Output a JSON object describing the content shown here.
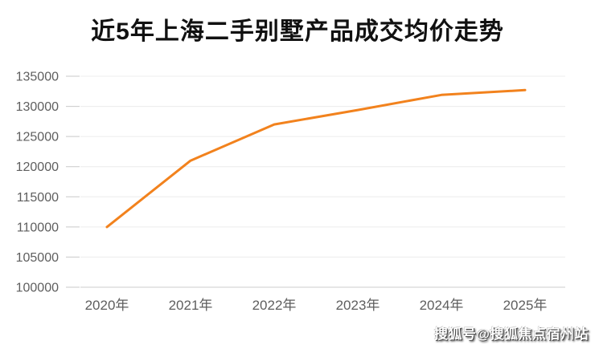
{
  "title": "近5年上海二手别墅产品成交均价走势",
  "watermark": "搜狐号@搜狐焦点宿州站",
  "chart_data": {
    "type": "line",
    "title": "近5年上海二手别墅产品成交均价走势",
    "categories": [
      "2020年",
      "2021年",
      "2022年",
      "2023年",
      "2024年",
      "2025年"
    ],
    "series": [
      {
        "name": "成交均价",
        "values": [
          110000,
          121000,
          127000,
          129400,
          131900,
          132700
        ]
      }
    ],
    "ylim": [
      100000,
      135000
    ],
    "yticks": [
      100000,
      105000,
      110000,
      115000,
      120000,
      125000,
      130000,
      135000
    ],
    "xlabel": "",
    "ylabel": "",
    "grid": true,
    "legend_position": "none",
    "colors": {
      "line": "#f2821d",
      "axis_label": "#5e5e5e",
      "gridline": "#ececec",
      "tick": "#c9c9c9",
      "axis_line": "#cccccc",
      "title": "#111111",
      "background": "#ffffff"
    }
  }
}
